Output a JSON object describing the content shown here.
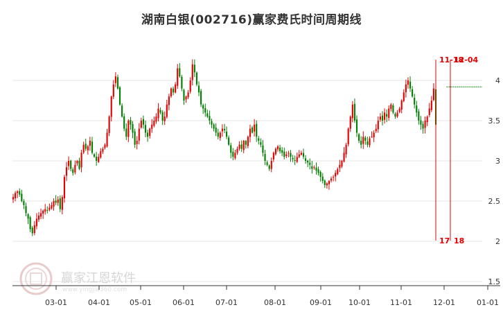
{
  "chart_data": {
    "type": "candlestick",
    "title": "湖南白银(002716)赢家费氏时间周期线",
    "xlabel": "",
    "ylabel": "",
    "ylim": [
      1.5,
      4.5
    ],
    "y_ticks": [
      "1.5",
      "2",
      "2.5",
      "3",
      "3.5",
      "4"
    ],
    "y_tick_values": [
      1.5,
      2,
      2.5,
      3,
      3.5,
      4
    ],
    "x_ticks": [
      "03-01",
      "04-01",
      "05-01",
      "06-01",
      "07-01",
      "08-01",
      "09-01",
      "10-01",
      "11-01",
      "12-01",
      "01-01"
    ],
    "grid": true,
    "colors": {
      "up": "#e60000",
      "down": "#008000",
      "cycle_line": "#e60000",
      "reference_line": "#008000"
    },
    "reference_line": {
      "value": 3.92,
      "start_index": 203
    },
    "cycle_lines": [
      {
        "index": 202,
        "top_label": "11-18",
        "bottom_label": "17"
      },
      {
        "index": 208,
        "top_label": "12-04",
        "bottom_label": "18"
      }
    ],
    "daily_closes": [
      2.55,
      2.6,
      2.62,
      2.58,
      2.5,
      2.45,
      2.35,
      2.28,
      2.15,
      2.1,
      2.2,
      2.28,
      2.32,
      2.35,
      2.38,
      2.4,
      2.38,
      2.42,
      2.45,
      2.5,
      2.48,
      2.52,
      2.4,
      2.55,
      2.8,
      2.92,
      3.0,
      2.9,
      2.85,
      2.95,
      3.0,
      2.9,
      3.1,
      3.2,
      3.15,
      3.18,
      3.25,
      3.1,
      3.05,
      3.0,
      3.05,
      3.12,
      3.15,
      3.2,
      3.35,
      3.55,
      3.8,
      3.95,
      4.05,
      3.9,
      3.7,
      3.55,
      3.4,
      3.3,
      3.5,
      3.45,
      3.35,
      3.2,
      3.25,
      3.4,
      3.5,
      3.45,
      3.35,
      3.3,
      3.4,
      3.45,
      3.5,
      3.55,
      3.65,
      3.6,
      3.5,
      3.55,
      3.7,
      3.8,
      3.9,
      3.85,
      3.95,
      4.15,
      4.05,
      3.9,
      3.75,
      3.8,
      3.85,
      4.0,
      4.2,
      4.1,
      3.95,
      3.85,
      3.7,
      3.65,
      3.6,
      3.55,
      3.5,
      3.45,
      3.4,
      3.35,
      3.3,
      3.35,
      3.4,
      3.38,
      3.3,
      3.2,
      3.1,
      3.05,
      3.1,
      3.15,
      3.2,
      3.15,
      3.25,
      3.2,
      3.3,
      3.4,
      3.35,
      3.45,
      3.3,
      3.25,
      3.2,
      3.1,
      3.0,
      2.95,
      2.9,
      3.0,
      3.1,
      3.15,
      3.18,
      3.12,
      3.1,
      3.05,
      3.08,
      3.1,
      3.05,
      3.02,
      3.0,
      3.05,
      3.08,
      3.1,
      3.05,
      3.0,
      2.98,
      2.95,
      2.9,
      2.92,
      2.88,
      2.85,
      2.8,
      2.75,
      2.7,
      2.72,
      2.75,
      2.78,
      2.8,
      2.85,
      2.9,
      2.95,
      3.0,
      3.1,
      3.2,
      3.4,
      3.55,
      3.7,
      3.5,
      3.35,
      3.25,
      3.2,
      3.3,
      3.25,
      3.2,
      3.28,
      3.3,
      3.35,
      3.4,
      3.5,
      3.55,
      3.5,
      3.6,
      3.55,
      3.65,
      3.7,
      3.6,
      3.55,
      3.6,
      3.65,
      3.75,
      3.85,
      3.95,
      4.0,
      3.9,
      3.8,
      3.7,
      3.6,
      3.5,
      3.45,
      3.4,
      3.5,
      3.55,
      3.65,
      3.75,
      3.9,
      3.45
    ]
  }
}
